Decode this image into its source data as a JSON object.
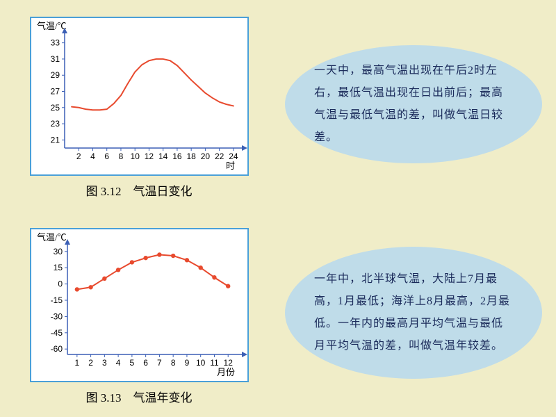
{
  "page_bg": "#f0edc8",
  "chart1": {
    "type": "line",
    "border_color": "#4aa0d8",
    "y_label": "气温/℃",
    "x_label": "时",
    "yticks": [
      21,
      23,
      25,
      27,
      29,
      31,
      33
    ],
    "xticks": [
      2,
      4,
      6,
      8,
      10,
      12,
      14,
      16,
      18,
      20,
      22,
      24
    ],
    "ylim": [
      20,
      34
    ],
    "xlim": [
      0,
      25
    ],
    "line_color": "#e84a2e",
    "axis_color": "#3b5fb5",
    "line_width": 2,
    "data_x": [
      1,
      2,
      3,
      4,
      5,
      6,
      7,
      8,
      9,
      10,
      11,
      12,
      13,
      14,
      15,
      16,
      17,
      18,
      19,
      20,
      21,
      22,
      23,
      24
    ],
    "data_y": [
      25.1,
      25.0,
      24.8,
      24.7,
      24.7,
      24.8,
      25.5,
      26.5,
      28.0,
      29.4,
      30.3,
      30.8,
      31.0,
      31.0,
      30.8,
      30.2,
      29.3,
      28.4,
      27.6,
      26.8,
      26.2,
      25.7,
      25.4,
      25.2
    ],
    "caption": "图 3.12　气温日变化"
  },
  "chart2": {
    "type": "line-marker",
    "border_color": "#4aa0d8",
    "y_label": "气温/℃",
    "x_label": "月份",
    "yticks": [
      -60,
      -45,
      -30,
      -15,
      0,
      15,
      30
    ],
    "xticks": [
      1,
      2,
      3,
      4,
      5,
      6,
      7,
      8,
      9,
      10,
      11,
      12
    ],
    "ylim": [
      -65,
      35
    ],
    "xlim": [
      0.3,
      12.9
    ],
    "line_color": "#e84a2e",
    "marker_color": "#e84a2e",
    "axis_color": "#3b5fb5",
    "line_width": 2,
    "marker_size": 3.2,
    "data_x": [
      1,
      2,
      3,
      4,
      5,
      6,
      7,
      8,
      9,
      10,
      11,
      12
    ],
    "data_y": [
      -5,
      -3,
      5,
      13,
      20,
      24,
      27,
      26,
      22,
      15,
      6,
      -2
    ],
    "caption": "图 3.13　气温年变化"
  },
  "bubble1": {
    "bg": "#bfdce9",
    "text": "一天中，最高气温出现在午后2时左右，最低气温出现在日出前后；最高气温与最低气温的差，叫做气温日较差。"
  },
  "bubble2": {
    "bg": "#bfdce9",
    "text": "一年中，北半球气温，大陆上7月最高，1月最低；海洋上8月最高，2月最低。一年内的最高月平均气温与最低月平均气温的差，叫做气温年较差。"
  }
}
